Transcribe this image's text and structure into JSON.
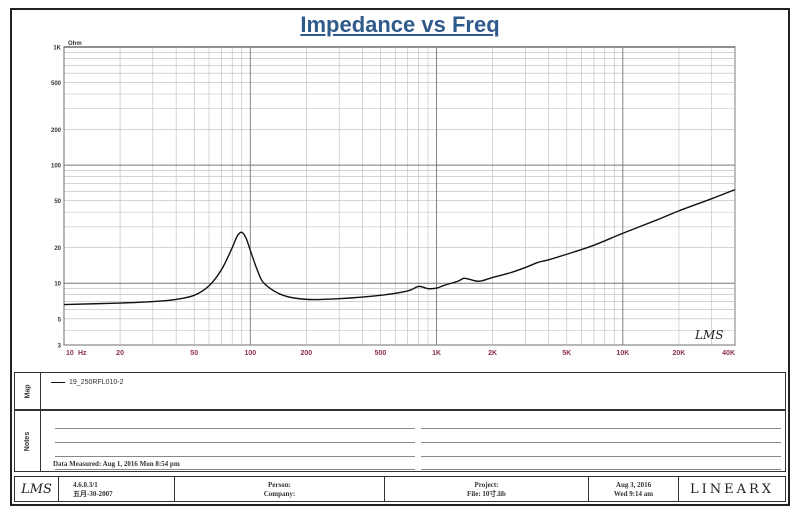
{
  "chart_data": {
    "type": "line",
    "title": "Impedance vs Freq",
    "ylabel": "Ohm",
    "xlabel": "Hz",
    "x_scale": "log",
    "y_scale": "log",
    "xlim": [
      10,
      40000
    ],
    "ylim": [
      3,
      1000
    ],
    "x_ticks": [
      {
        "v": 10,
        "t": "10"
      },
      {
        "v": 20,
        "t": "20"
      },
      {
        "v": 50,
        "t": "50"
      },
      {
        "v": 100,
        "t": "100"
      },
      {
        "v": 200,
        "t": "200"
      },
      {
        "v": 500,
        "t": "500"
      },
      {
        "v": 1000,
        "t": "1K"
      },
      {
        "v": 2000,
        "t": "2K"
      },
      {
        "v": 5000,
        "t": "5K"
      },
      {
        "v": 10000,
        "t": "10K"
      },
      {
        "v": 20000,
        "t": "20K"
      },
      {
        "v": 40000,
        "t": "40K"
      }
    ],
    "x_unit_label": "Hz",
    "y_ticks": [
      {
        "v": 1000,
        "t": "1K"
      },
      {
        "v": 500,
        "t": "500"
      },
      {
        "v": 200,
        "t": "200"
      },
      {
        "v": 100,
        "t": "100"
      },
      {
        "v": 50,
        "t": "50"
      },
      {
        "v": 20,
        "t": "20"
      },
      {
        "v": 10,
        "t": "10"
      },
      {
        "v": 5,
        "t": "5"
      },
      {
        "v": 3,
        "t": "3"
      }
    ],
    "grid": true,
    "watermark": "LMS",
    "series": [
      {
        "name": "19_250RFL010-2",
        "color": "#111111",
        "x": [
          10,
          20,
          30,
          40,
          50,
          60,
          70,
          80,
          85,
          90,
          95,
          100,
          110,
          120,
          150,
          200,
          300,
          500,
          700,
          800,
          900,
          1000,
          1100,
          1300,
          1400,
          1500,
          1700,
          2000,
          2500,
          3000,
          3500,
          4000,
          5000,
          7000,
          10000,
          15000,
          20000,
          30000,
          40000
        ],
        "values": [
          6.6,
          6.8,
          7.0,
          7.3,
          7.9,
          9.5,
          13.0,
          20.0,
          25.0,
          27.0,
          24.0,
          19.0,
          12.5,
          9.8,
          7.9,
          7.3,
          7.4,
          7.9,
          8.6,
          9.4,
          9.0,
          9.1,
          9.6,
          10.4,
          11.0,
          10.8,
          10.4,
          11.2,
          12.3,
          13.6,
          15.0,
          15.8,
          17.6,
          21.0,
          26.5,
          34.0,
          41.0,
          52.0,
          62.0
        ]
      }
    ]
  },
  "legend": {
    "tab_label": "Map",
    "entry": "19_250RFL010-2"
  },
  "notes": {
    "tab_label": "Notes",
    "date_measured": "Data Measured: Aug 1, 2016 Mon 8:54 pm"
  },
  "footer": {
    "logo": "LMS",
    "version": "4.6.0.3/1",
    "version_date": "五月-30-2007",
    "person_label": "Person:",
    "company_label": "Company:",
    "project_label": "Project:",
    "file_label": "File: 10寸.lib",
    "date_line1": "Aug 3, 2016",
    "date_line2": "Wed 9:14 am",
    "brand": "LINEARX"
  }
}
